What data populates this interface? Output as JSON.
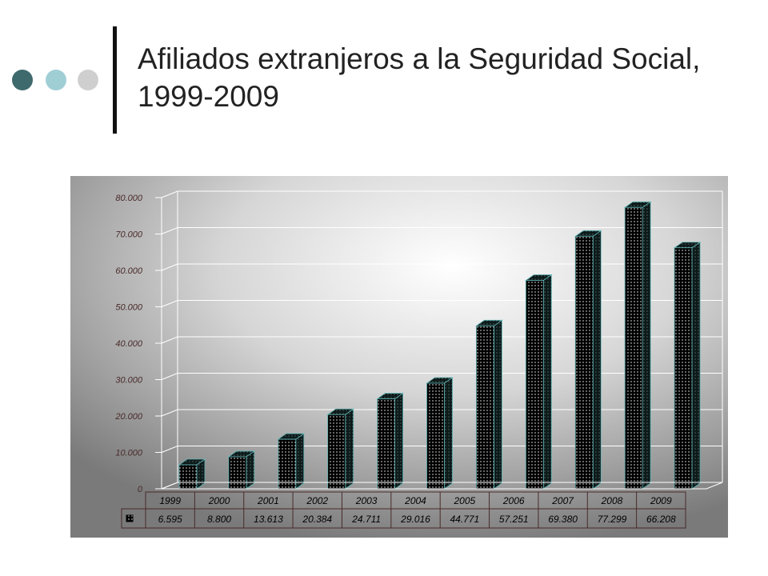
{
  "slide": {
    "title": "Afiliados extranjeros a la Seguridad Social, 1999-2009"
  },
  "decor": {
    "dot_colors": [
      "#3f6a6d",
      "#9fcfd4",
      "#cfcfcf"
    ]
  },
  "chart_data": {
    "type": "bar",
    "title": "",
    "xlabel": "",
    "ylabel": "",
    "categories": [
      "1999",
      "2000",
      "2001",
      "2002",
      "2003",
      "2004",
      "2005",
      "2006",
      "2007",
      "2008",
      "2009"
    ],
    "values": [
      6595,
      8800,
      13613,
      20384,
      24711,
      29016,
      44771,
      57251,
      69380,
      77299,
      66208
    ],
    "value_labels": [
      "6.595",
      "8.800",
      "13.613",
      "20.384",
      "24.711",
      "29.016",
      "44.771",
      "57.251",
      "69.380",
      "77.299",
      "66.208"
    ],
    "ylim": [
      0,
      80000
    ],
    "yticks": [
      0,
      10000,
      20000,
      30000,
      40000,
      50000,
      60000,
      70000,
      80000
    ],
    "ytick_labels": [
      "0",
      "10.000",
      "20.000",
      "30.000",
      "40.000",
      "50.000",
      "60.000",
      "70.000",
      "80.000"
    ],
    "grid": true,
    "data_table": true,
    "colors": {
      "bar_fill": "#000000",
      "bar_dots": "#ffffff",
      "bar_side": "#0d1a1a",
      "bar_edge": "#5fb3b3",
      "axis_text": "#4a2a2a"
    }
  }
}
